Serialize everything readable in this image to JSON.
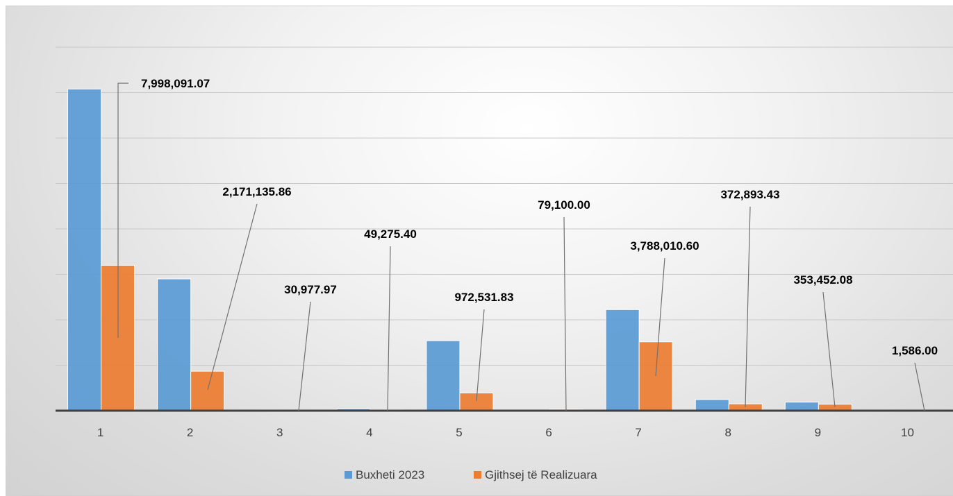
{
  "chart_data": {
    "type": "bar",
    "categories": [
      "1",
      "2",
      "3",
      "4",
      "5",
      "6",
      "7",
      "8",
      "9",
      "10"
    ],
    "series": [
      {
        "name": "Buxheti  2023",
        "color": "#5b9bd5",
        "values": [
          17700000,
          7250000,
          0,
          100000,
          3850000,
          0,
          5560000,
          610000,
          470000,
          0
        ]
      },
      {
        "name": "Gjithsej të Realizuara",
        "color": "#ed7d31",
        "values": [
          7998091.07,
          2171135.86,
          30977.97,
          49275.4,
          972531.83,
          79100.0,
          3788010.6,
          372893.43,
          353452.08,
          1586.0
        ]
      }
    ],
    "data_labels": [
      "7,998,091.07",
      "2,171,135.86",
      "30,977.97",
      "49,275.40",
      "972,531.83",
      "79,100.00",
      "3,788,010.60",
      "372,893.43",
      "353,452.08",
      "1,586.00"
    ],
    "ylim": [
      0,
      20000000
    ],
    "grid": true,
    "legend_position": "bottom"
  }
}
